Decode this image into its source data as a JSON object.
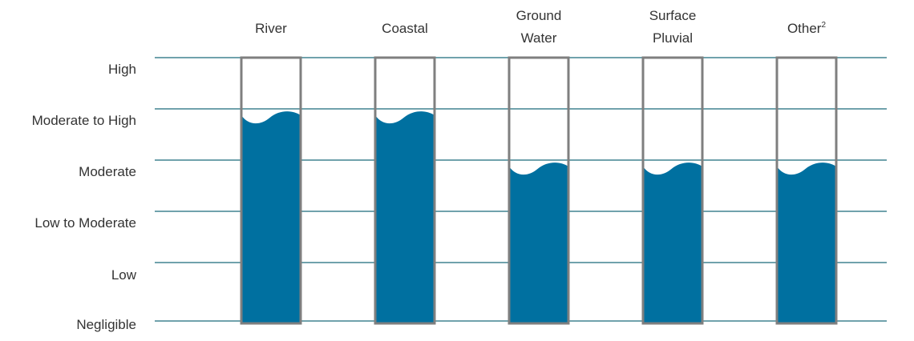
{
  "chart_data": {
    "type": "bar",
    "title": "",
    "xlabel": "",
    "ylabel": "",
    "categories": [
      "River",
      "Coastal",
      "Ground Water",
      "Surface Pluvial",
      "Other"
    ],
    "category_footnotes": [
      "",
      "",
      "",
      "",
      "2"
    ],
    "levels": [
      "Negligible",
      "Low",
      "Low to Moderate",
      "Moderate",
      "Moderate to High",
      "High"
    ],
    "values": [
      4,
      4,
      3,
      3,
      3
    ],
    "ylim": [
      0,
      5
    ],
    "grid": true,
    "legend": "none",
    "colors": {
      "fill": "#0070a0",
      "tube": "#7f7f7f",
      "grid": "#1b6a7a",
      "text": "#333333"
    }
  }
}
